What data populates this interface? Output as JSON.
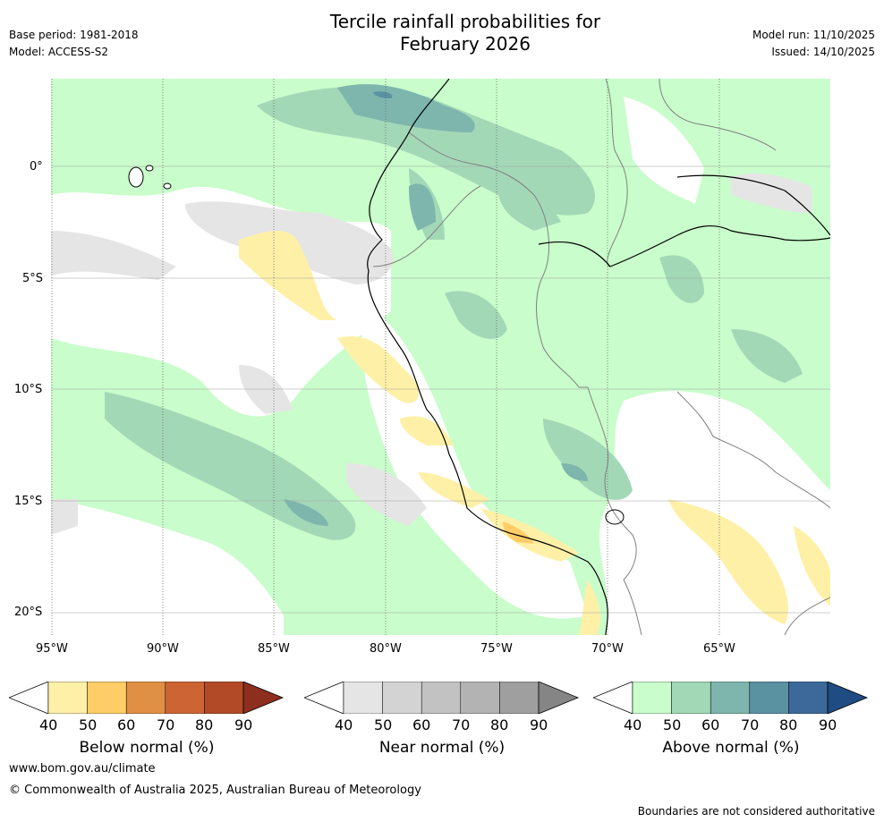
{
  "header": {
    "title_line1": "Tercile rainfall probabilities for",
    "title_line2": "February 2026",
    "base_period": "Base period: 1981-2018",
    "model": "Model: ACCESS-S2",
    "model_run": "Model run: 11/10/2025",
    "issued": "Issued: 14/10/2025"
  },
  "map": {
    "region": "Western South America",
    "lon_ticks": [
      "95°W",
      "90°W",
      "85°W",
      "80°W",
      "75°W",
      "70°W",
      "65°W"
    ],
    "lat_ticks": [
      "0°",
      "5°S",
      "10°S",
      "15°S",
      "20°S"
    ],
    "lon_range": [
      -95,
      -60
    ],
    "lat_range": [
      -21,
      4
    ],
    "gridlines": true
  },
  "colorbars": [
    {
      "label": "Below normal (%)",
      "ticks": [
        "40",
        "50",
        "60",
        "70",
        "80",
        "90"
      ],
      "colors": [
        "#fff0a8",
        "#fecd67",
        "#e09045",
        "#cc6533",
        "#b24a27",
        "#8d2e1e"
      ]
    },
    {
      "label": "Near normal (%)",
      "ticks": [
        "40",
        "50",
        "60",
        "70",
        "80",
        "90"
      ],
      "colors": [
        "#e5e5e5",
        "#d3d3d3",
        "#c2c2c2",
        "#b3b3b3",
        "#9f9f9f",
        "#858585"
      ]
    },
    {
      "label": "Above normal (%)",
      "ticks": [
        "40",
        "50",
        "60",
        "70",
        "80",
        "90"
      ],
      "colors": [
        "#c9fdcb",
        "#a3d8b7",
        "#7eb6ae",
        "#5b92a2",
        "#3d689a",
        "#1f4c82"
      ]
    }
  ],
  "footer": {
    "website": "www.bom.gov.au/climate",
    "copyright": "© Commonwealth of Australia 2025, Australian Bureau of Meteorology",
    "disclaimer": "Boundaries are not considered authoritative"
  },
  "palette": {
    "above_light": "#c9fdcb",
    "above_mid": "#a3d8b7",
    "above_dark": "#7eb6ae",
    "above_darker": "#5b92a2",
    "near": "#e5e5e5",
    "below": "#fff0a8",
    "below_mid": "#fecd67",
    "coast": "#000000",
    "border": "#808080"
  }
}
